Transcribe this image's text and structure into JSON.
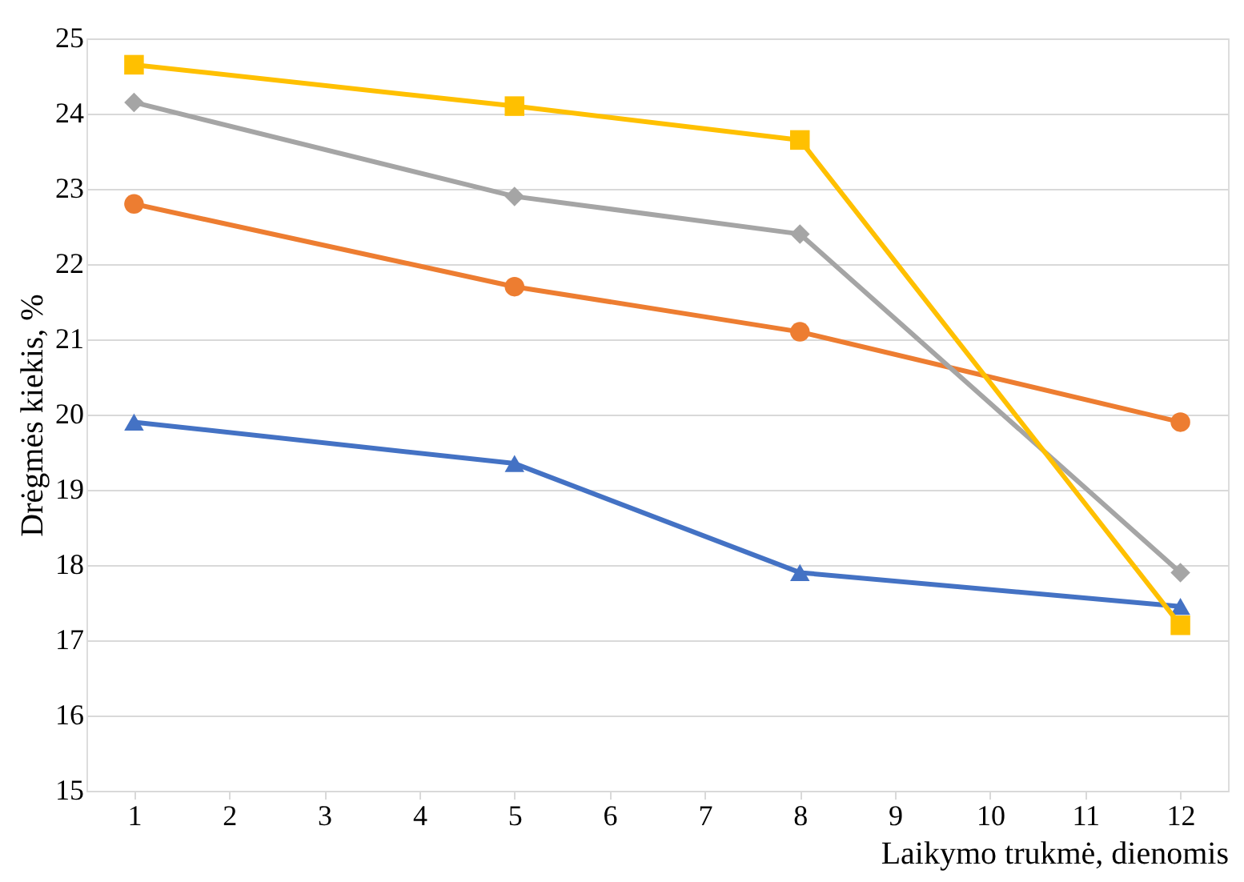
{
  "chart_data": {
    "type": "line",
    "xlabel": "Laikymo trukmė, dienomis",
    "ylabel": "Drėgmės kiekis, %",
    "x": [
      1,
      5,
      8,
      12
    ],
    "series": [
      {
        "color": "#4472c4",
        "marker": "triangle",
        "values": [
          19.9,
          19.35,
          17.9,
          17.45
        ]
      },
      {
        "color": "#ed7d31",
        "marker": "circle",
        "values": [
          22.8,
          21.7,
          21.1,
          19.9
        ]
      },
      {
        "color": "#a5a5a5",
        "marker": "diamond",
        "values": [
          24.15,
          22.9,
          22.4,
          17.9
        ]
      },
      {
        "color": "#ffc000",
        "marker": "square",
        "values": [
          24.65,
          24.1,
          23.65,
          17.2
        ]
      }
    ],
    "xlim": [
      0.5,
      12.5
    ],
    "xticks": [
      1,
      2,
      3,
      4,
      5,
      6,
      7,
      8,
      9,
      10,
      11,
      12
    ],
    "ylim": [
      15,
      25
    ],
    "yticks": [
      15,
      16,
      17,
      18,
      19,
      20,
      21,
      22,
      23,
      24,
      25
    ],
    "grid": "y",
    "legend": false,
    "line_style": "solid"
  }
}
